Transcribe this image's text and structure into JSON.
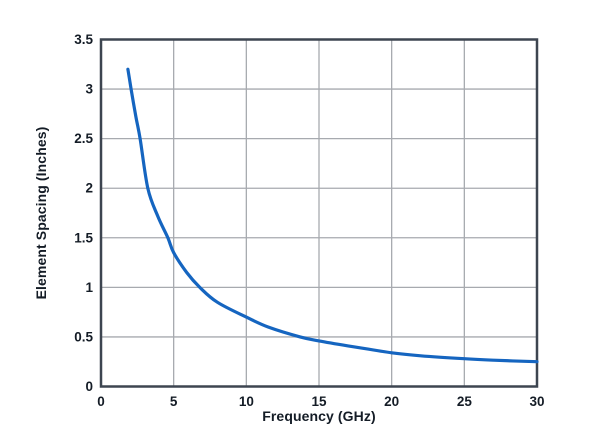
{
  "chart_data": {
    "type": "line",
    "title": "",
    "xlabel": "Frequency (GHz)",
    "ylabel": "Element Spacing (Inches)",
    "xlim": [
      0,
      30
    ],
    "ylim": [
      0,
      3.5
    ],
    "x_ticks": [
      0,
      5,
      10,
      15,
      20,
      25,
      30
    ],
    "x_tick_labels": [
      "0",
      "5",
      "10",
      "15",
      "20",
      "25",
      "30"
    ],
    "y_ticks": [
      0,
      0.5,
      1,
      1.5,
      2,
      2.5,
      3,
      3.5
    ],
    "y_tick_labels": [
      "0",
      "0.5",
      "1",
      "1.5",
      "2",
      "2.5",
      "3",
      "3.5"
    ],
    "grid": true,
    "legend": false,
    "series": [
      {
        "name": "element-spacing-vs-frequency",
        "color": "#1565c0",
        "points": [
          [
            1.85,
            3.2
          ],
          [
            2.07,
            3.0
          ],
          [
            2.4,
            2.72
          ],
          [
            2.69,
            2.5
          ],
          [
            3.22,
            2.0
          ],
          [
            3.9,
            1.72
          ],
          [
            4.6,
            1.5
          ],
          [
            5.0,
            1.35
          ],
          [
            5.9,
            1.15
          ],
          [
            6.8,
            1.0
          ],
          [
            8.0,
            0.85
          ],
          [
            10.0,
            0.7
          ],
          [
            11.5,
            0.6
          ],
          [
            13.7,
            0.5
          ],
          [
            15.0,
            0.46
          ],
          [
            17.0,
            0.41
          ],
          [
            20.0,
            0.34
          ],
          [
            22.0,
            0.31
          ],
          [
            25.0,
            0.28
          ],
          [
            27.0,
            0.265
          ],
          [
            30.0,
            0.25
          ]
        ]
      }
    ],
    "colors": {
      "curve": "#1565c0",
      "grid": "#a7aaaf",
      "border": "#3d4550",
      "text": "#141c26",
      "background": "#ffffff"
    }
  }
}
